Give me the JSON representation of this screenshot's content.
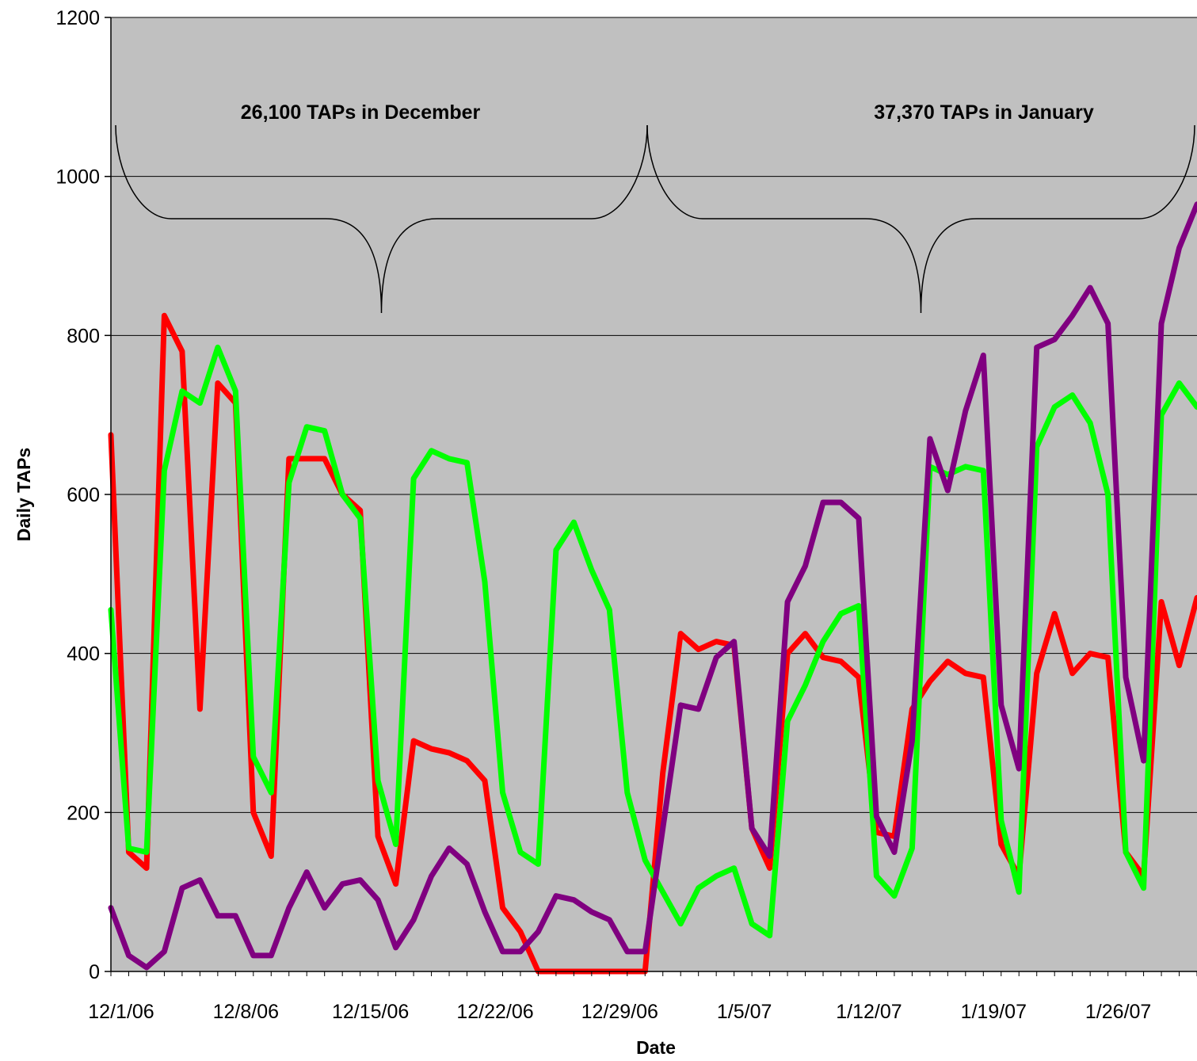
{
  "chart_data": {
    "type": "line",
    "title": "",
    "xlabel": "Date",
    "ylabel": "Daily TAPs",
    "ylim": [
      0,
      1200
    ],
    "yticks": [
      "0",
      "200",
      "400",
      "600",
      "800",
      "1000",
      "1200"
    ],
    "xticks": [
      "12/1/06",
      "12/8/06",
      "12/15/06",
      "12/22/06",
      "12/29/06",
      "1/5/07",
      "1/12/07",
      "1/19/07",
      "1/26/07"
    ],
    "grid": true,
    "legend": "none",
    "x": [
      "12/1/06",
      "12/2/06",
      "12/3/06",
      "12/4/06",
      "12/5/06",
      "12/6/06",
      "12/7/06",
      "12/8/06",
      "12/9/06",
      "12/10/06",
      "12/11/06",
      "12/12/06",
      "12/13/06",
      "12/14/06",
      "12/15/06",
      "12/16/06",
      "12/17/06",
      "12/18/06",
      "12/19/06",
      "12/20/06",
      "12/21/06",
      "12/22/06",
      "12/23/06",
      "12/24/06",
      "12/25/06",
      "12/26/06",
      "12/27/06",
      "12/28/06",
      "12/29/06",
      "12/30/06",
      "12/31/06",
      "1/1/07",
      "1/2/07",
      "1/3/07",
      "1/4/07",
      "1/5/07",
      "1/6/07",
      "1/7/07",
      "1/8/07",
      "1/9/07",
      "1/10/07",
      "1/11/07",
      "1/12/07",
      "1/13/07",
      "1/14/07",
      "1/15/07",
      "1/16/07",
      "1/17/07",
      "1/18/07",
      "1/19/07",
      "1/20/07",
      "1/21/07",
      "1/22/07",
      "1/23/07",
      "1/24/07",
      "1/25/07",
      "1/26/07",
      "1/27/07",
      "1/28/07",
      "1/29/07",
      "1/30/07",
      "1/31/07"
    ],
    "series": [
      {
        "color": "#ff0000",
        "values": [
          675,
          150,
          130,
          825,
          780,
          330,
          740,
          715,
          200,
          145,
          645,
          645,
          645,
          600,
          580,
          170,
          110,
          290,
          280,
          275,
          265,
          240,
          80,
          50,
          0,
          0,
          0,
          0,
          0,
          0,
          0,
          250,
          425,
          405,
          415,
          410,
          180,
          130,
          400,
          425,
          395,
          390,
          370,
          175,
          170,
          330,
          365,
          390,
          375,
          370,
          160,
          120,
          375,
          450,
          375,
          400,
          395,
          150,
          120,
          465,
          385,
          470
        ]
      },
      {
        "color": "#00ff00",
        "values": [
          455,
          155,
          150,
          630,
          730,
          715,
          785,
          730,
          270,
          225,
          615,
          685,
          680,
          600,
          570,
          240,
          160,
          620,
          655,
          645,
          640,
          490,
          225,
          150,
          135,
          530,
          565,
          505,
          455,
          225,
          140,
          100,
          60,
          105,
          120,
          130,
          60,
          45,
          315,
          360,
          415,
          450,
          460,
          120,
          95,
          155,
          635,
          625,
          635,
          630,
          190,
          100,
          660,
          710,
          725,
          690,
          600,
          150,
          105,
          700,
          740,
          710
        ]
      },
      {
        "color": "#800080",
        "values": [
          80,
          20,
          5,
          25,
          105,
          115,
          70,
          70,
          20,
          20,
          80,
          125,
          80,
          110,
          115,
          90,
          30,
          65,
          120,
          155,
          135,
          75,
          25,
          25,
          50,
          95,
          90,
          75,
          65,
          25,
          25,
          180,
          335,
          330,
          395,
          415,
          180,
          145,
          465,
          510,
          590,
          590,
          570,
          195,
          150,
          290,
          670,
          605,
          705,
          775,
          335,
          255,
          785,
          795,
          825,
          860,
          815,
          370,
          265,
          815,
          910,
          965
        ]
      }
    ],
    "annotations": [
      {
        "text": "26,100 TAPs in December"
      },
      {
        "text": "37,370 TAPs in January"
      }
    ],
    "colors": {
      "plot_background": "#c0c0c0",
      "gridline": "#000000"
    }
  }
}
